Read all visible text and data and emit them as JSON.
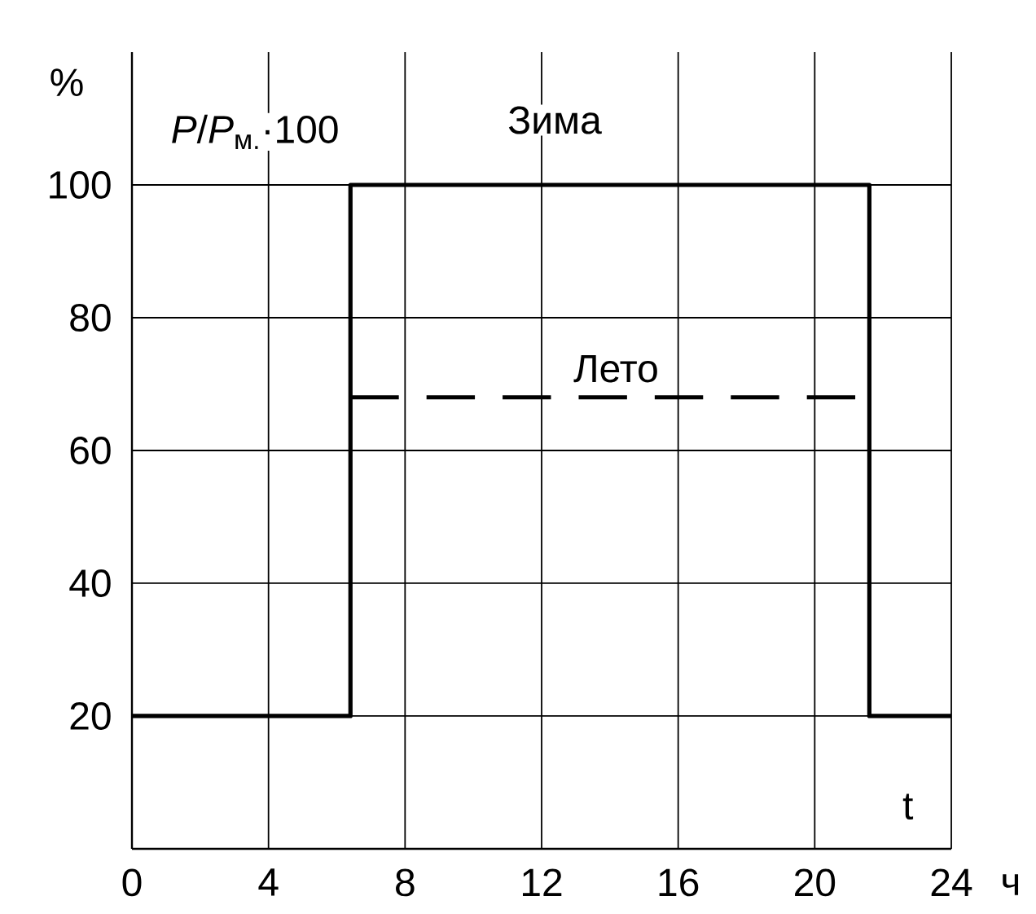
{
  "chart_data": {
    "type": "step",
    "ylabel": "%",
    "xlabel": "t",
    "annotations": [
      "*P*/*P*$_{м.}$·100",
      "ч"
    ],
    "series": [
      {
        "name": "Зима",
        "color": "#000000",
        "line_style": "solid",
        "x": [
          0,
          6.4,
          21.6,
          24
        ],
        "values": [
          20,
          100,
          20,
          20
        ]
      },
      {
        "name": "Лето",
        "color": "#000000",
        "line_style": "dashed",
        "x": [
          6.4,
          21.2
        ],
        "values": [
          68,
          68
        ]
      }
    ],
    "xlim": [
      0,
      24
    ],
    "ylim": [
      0,
      120
    ],
    "xticks": [
      0,
      4,
      8,
      12,
      16,
      20,
      24
    ],
    "yticks": [
      20,
      40,
      60,
      80,
      100
    ],
    "grid": true
  }
}
